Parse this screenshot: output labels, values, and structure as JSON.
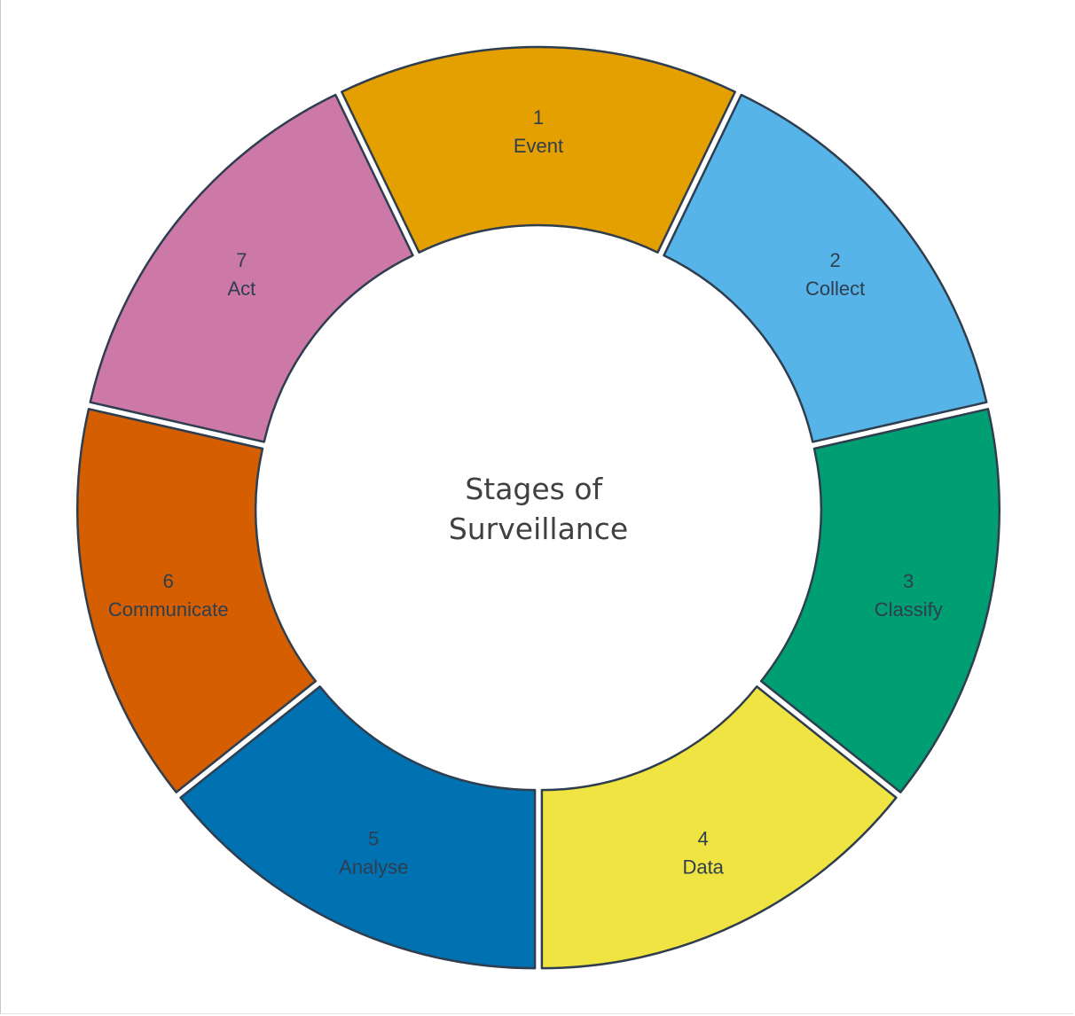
{
  "diagram": {
    "center_title": [
      "Stages of",
      "Surveillance"
    ],
    "segments": [
      {
        "number": "1",
        "label": "Event",
        "color": "#E49F00"
      },
      {
        "number": "2",
        "label": "Collect",
        "color": "#57B4E8"
      },
      {
        "number": "3",
        "label": "Classify",
        "color": "#009E73"
      },
      {
        "number": "4",
        "label": "Data",
        "color": "#F0E442"
      },
      {
        "number": "5",
        "label": "Analyse",
        "color": "#0072B2"
      },
      {
        "number": "6",
        "label": "Communicate",
        "color": "#D55E00"
      },
      {
        "number": "7",
        "label": "Act",
        "color": "#CC79A7"
      }
    ],
    "outline_color": "#2F3E4F"
  }
}
